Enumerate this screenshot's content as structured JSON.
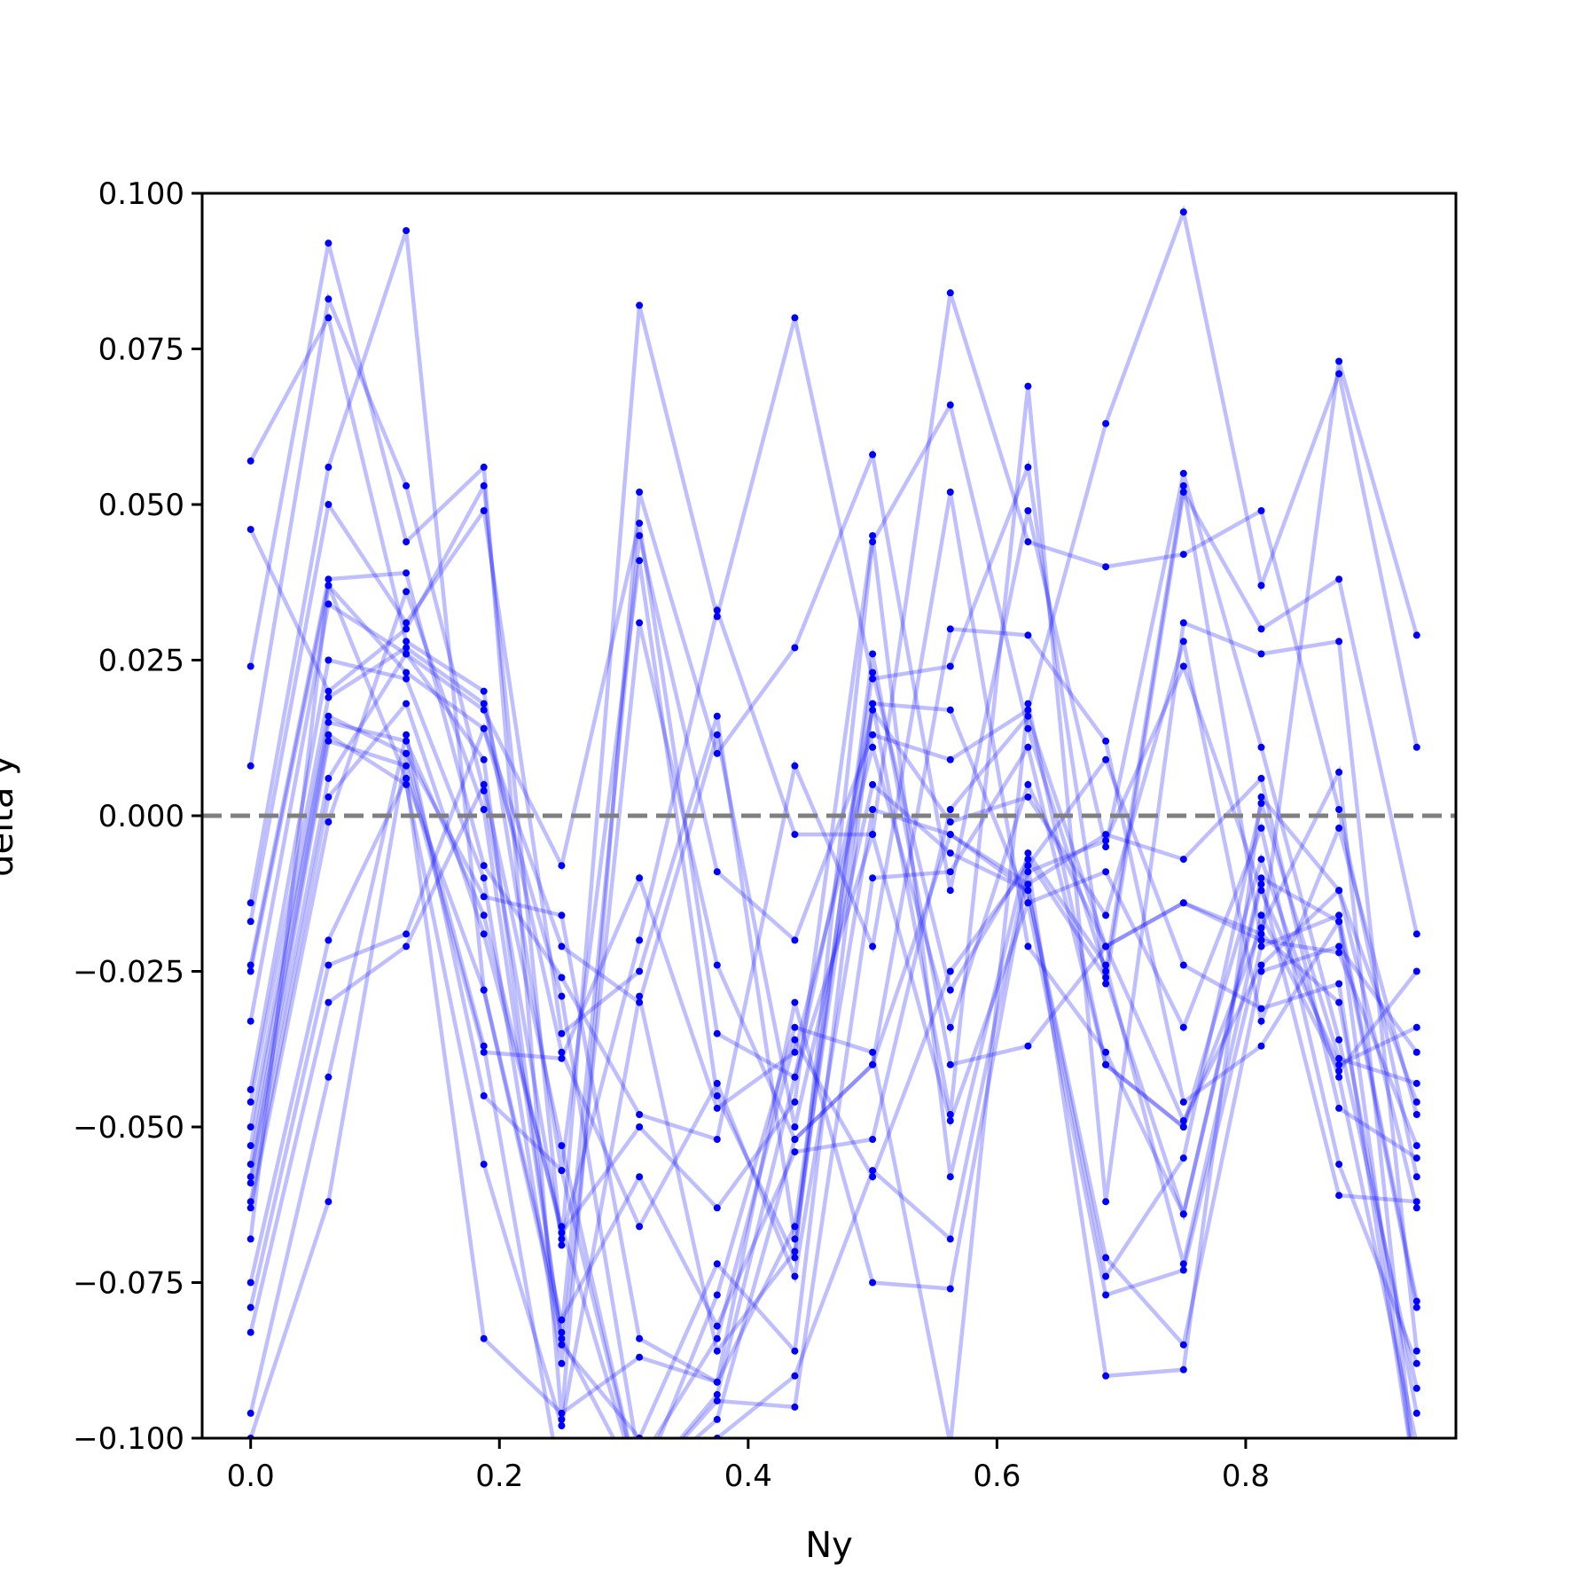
{
  "chart_data": {
    "type": "line",
    "xlabel": "Ny",
    "ylabel": "delta y",
    "xlim": [
      -0.039,
      0.969
    ],
    "ylim": [
      -0.1,
      0.1
    ],
    "x_ticks": [
      0.0,
      0.2,
      0.4,
      0.6,
      0.8
    ],
    "x_tick_labels": [
      "0.0",
      "0.2",
      "0.4",
      "0.6",
      "0.8"
    ],
    "y_ticks": [
      -0.1,
      -0.075,
      -0.05,
      -0.025,
      0.0,
      0.025,
      0.05,
      0.075,
      0.1
    ],
    "y_tick_labels": [
      "−0.100",
      "−0.075",
      "−0.050",
      "−0.025",
      "0.000",
      "0.025",
      "0.050",
      "0.075",
      "0.100"
    ],
    "reference_line": {
      "y": 0.0,
      "style": "dashed",
      "color": "#7f7f7f"
    },
    "grid": false,
    "legend": "none",
    "series_color": "#0000ff",
    "line_alpha": 0.25,
    "x": [
      0.0,
      0.0625,
      0.125,
      0.1875,
      0.25,
      0.3125,
      0.375,
      0.4375,
      0.5,
      0.5625,
      0.625,
      0.6875,
      0.75,
      0.8125,
      0.875,
      0.9375
    ],
    "series": [
      {
        "values": [
          0.057,
          0.08,
          0.028,
          0.02,
          -0.057,
          0.041,
          -0.045,
          -0.071,
          0.044,
          0.066,
          0.014,
          -0.025,
          0.053,
          -0.02,
          0.073,
          0.029
        ]
      },
      {
        "values": [
          0.046,
          0.02,
          0.03,
          0.053,
          -0.069,
          0.082,
          0.032,
          0.08,
          0.022,
          0.024,
          0.056,
          -0.027,
          0.052,
          0.03,
          0.038,
          -0.019
        ]
      },
      {
        "values": [
          0.024,
          0.092,
          0.044,
          0.056,
          -0.097,
          0.052,
          0.01,
          0.027,
          0.058,
          -0.012,
          0.049,
          -0.005,
          0.055,
          0.011,
          -0.036,
          -0.092
        ]
      },
      {
        "values": [
          0.008,
          0.083,
          0.053,
          0.004,
          -0.068,
          -0.02,
          0.033,
          -0.003,
          -0.003,
          0.084,
          0.044,
          0.04,
          0.042,
          0.049,
          0.001,
          -0.058
        ]
      },
      {
        "values": [
          -0.014,
          0.056,
          0.094,
          -0.028,
          -0.083,
          0.045,
          -0.009,
          -0.02,
          0.013,
          0.009,
          0.017,
          0.063,
          0.097,
          0.037,
          0.071,
          0.011
        ]
      },
      {
        "values": [
          -0.017,
          0.05,
          0.031,
          0.049,
          -0.035,
          -0.025,
          0.016,
          -0.068,
          0.018,
          -0.048,
          0.069,
          -0.062,
          0.031,
          0.026,
          0.028,
          -0.086
        ]
      },
      {
        "values": [
          -0.024,
          0.038,
          0.039,
          -0.008,
          -0.026,
          -0.048,
          -0.052,
          0.008,
          -0.021,
          0.052,
          -0.021,
          -0.038,
          -0.064,
          -0.011,
          -0.061,
          -0.062
        ]
      },
      {
        "values": [
          -0.025,
          0.037,
          0.023,
          0.014,
          -0.021,
          -0.03,
          0.013,
          -0.05,
          0.005,
          -0.006,
          -0.012,
          -0.074,
          -0.055,
          0.002,
          -0.039,
          -0.043
        ]
      },
      {
        "values": [
          -0.033,
          0.034,
          0.026,
          0.017,
          -0.008,
          0.047,
          -0.035,
          -0.042,
          0.017,
          -0.001,
          0.003,
          -0.016,
          0.028,
          -0.033,
          -0.002,
          -0.048
        ]
      },
      {
        "values": [
          -0.044,
          0.025,
          0.022,
          -0.01,
          -0.088,
          0.031,
          -0.024,
          -0.052,
          -0.04,
          0.03,
          0.029,
          0.012,
          -0.046,
          -0.037,
          -0.017,
          -0.079
        ]
      },
      {
        "values": [
          -0.046,
          0.019,
          0.027,
          0.018,
          -0.038,
          -0.066,
          -0.043,
          -0.074,
          0.001,
          -0.003,
          -0.011,
          -0.003,
          -0.007,
          0.006,
          -0.047,
          -0.055
        ]
      },
      {
        "values": [
          -0.05,
          0.016,
          0.01,
          -0.013,
          -0.016,
          -0.084,
          -0.091,
          -0.03,
          -0.075,
          -0.076,
          -0.009,
          -0.004,
          0.024,
          -0.012,
          -0.04,
          -0.034
        ]
      },
      {
        "values": [
          -0.053,
          0.015,
          0.012,
          -0.016,
          -0.067,
          -0.05,
          -0.063,
          -0.046,
          0.045,
          -0.058,
          -0.006,
          -0.024,
          -0.072,
          -0.016,
          -0.041,
          -0.025
        ]
      },
      {
        "values": [
          -0.056,
          0.013,
          0.005,
          -0.056,
          -0.098,
          -0.029,
          -0.086,
          -0.07,
          0.026,
          -0.04,
          -0.037,
          -0.021,
          -0.014,
          -0.019,
          -0.03,
          -0.096
        ]
      },
      {
        "values": [
          -0.058,
          0.012,
          0.008,
          -0.038,
          -0.039,
          -0.01,
          -0.047,
          -0.038,
          0.011,
          -0.034,
          0.005,
          -0.021,
          -0.049,
          -0.024,
          -0.012,
          -0.063
        ]
      },
      {
        "values": [
          -0.059,
          0.006,
          0.026,
          0.009,
          -0.085,
          -0.1,
          -0.072,
          -0.086,
          0.018,
          0.017,
          -0.014,
          -0.009,
          -0.034,
          -0.002,
          -0.056,
          -0.088
        ]
      },
      {
        "values": [
          -0.062,
          0.003,
          0.018,
          -0.019,
          -0.066,
          -0.108,
          -0.094,
          -0.095,
          -0.01,
          -0.009,
          0.011,
          -0.04,
          -0.05,
          -0.018,
          0.007,
          -0.108
        ]
      },
      {
        "values": [
          -0.063,
          -0.001,
          0.036,
          0.001,
          -0.084,
          -0.108,
          -0.097,
          -0.052,
          -0.04,
          -0.003,
          -0.012,
          -0.071,
          -0.085,
          -0.025,
          -0.021,
          -0.038
        ]
      },
      {
        "values": [
          -0.068,
          0.037,
          0.006,
          -0.084,
          -0.096,
          -0.087,
          -0.091,
          -0.066,
          0.023,
          -0.028,
          -0.007,
          -0.026,
          -0.064,
          -0.01,
          -0.017,
          -0.108
        ]
      },
      {
        "values": [
          -0.075,
          -0.02,
          0.006,
          -0.028,
          -0.081,
          -0.058,
          -0.082,
          -0.054,
          -0.052,
          0.001,
          0.016,
          -0.021,
          -0.014,
          -0.02,
          -0.022,
          -0.053
        ]
      },
      {
        "values": [
          -0.079,
          -0.024,
          -0.019,
          0.014,
          -0.029,
          -0.104,
          -0.084,
          -0.036,
          -0.058,
          -0.025,
          -0.008,
          -0.09,
          -0.089,
          0.003,
          -0.012,
          -0.046
        ]
      },
      {
        "values": [
          -0.083,
          -0.03,
          -0.021,
          0.005,
          -0.053,
          -0.108,
          -0.093,
          -0.042,
          -0.003,
          -0.049,
          -0.014,
          -0.077,
          -0.073,
          -0.021,
          -0.016,
          -0.078
        ]
      },
      {
        "values": [
          -0.096,
          -0.042,
          0.013,
          -0.045,
          -0.057,
          -0.108,
          -0.077,
          -0.034,
          -0.038,
          -0.101,
          0.018,
          -0.04,
          -0.05,
          -0.007,
          -0.042,
          -0.101
        ]
      },
      {
        "values": [
          -0.1,
          -0.062,
          0.01,
          -0.037,
          -0.108,
          -0.108,
          -0.1,
          -0.09,
          -0.057,
          -0.068,
          -0.008,
          0.009,
          -0.024,
          -0.031,
          -0.027,
          -0.108
        ]
      }
    ]
  }
}
